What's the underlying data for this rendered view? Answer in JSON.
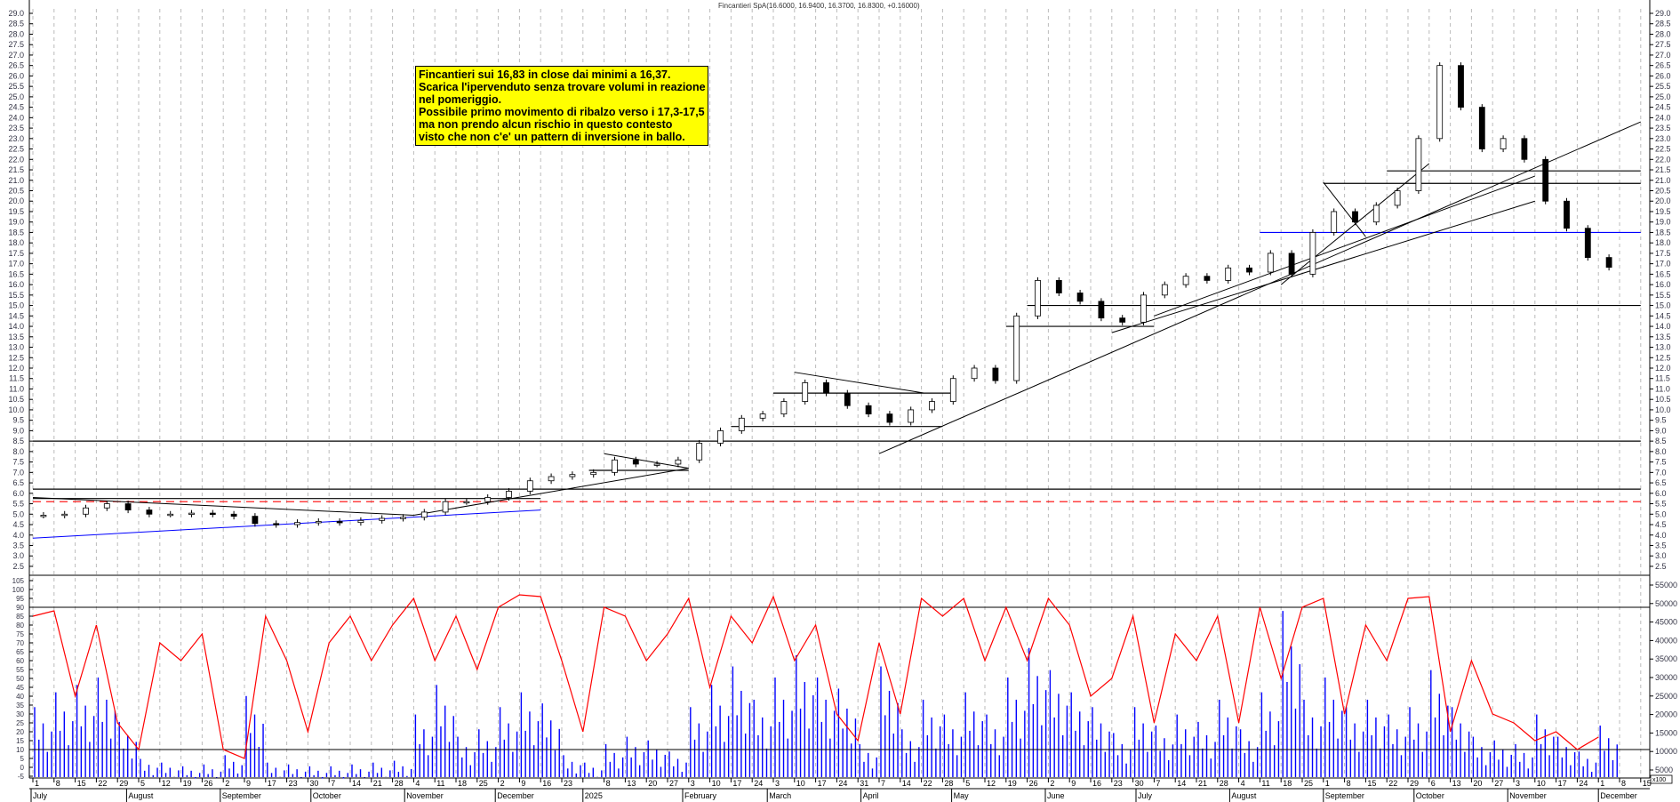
{
  "title": "Fincantieri SpA(16.6000, 16.9400, 16.3700, 16.8300, +0.16000)",
  "note": {
    "lines": [
      "Fincantieri sui 16,83 in close dai minimi a 16,37.",
      "Scarica l'ipervenduto senza trovare volumi in reazione",
      "nel pomeriggio.",
      "Possibile primo movimento di ribalzo verso i 17,3-17,5",
      "ma non prendo alcun rischio in questo contesto",
      "visto che non c'e' un pattern di inversione in ballo."
    ],
    "background": "#ffff00"
  },
  "volume_unit_label": "x100",
  "chart_data": {
    "type": "candlestick",
    "start_date": "2024-07-01",
    "x_ticks": [
      "1",
      "8",
      "15",
      "22",
      "29",
      "5",
      "12",
      "19",
      "26",
      "2",
      "9",
      "17",
      "23",
      "30",
      "7",
      "14",
      "21",
      "28",
      "4",
      "11",
      "18",
      "25",
      "2",
      "9",
      "16",
      "23",
      "",
      "8",
      "13",
      "20",
      "27",
      "3",
      "10",
      "17",
      "24",
      "3",
      "10",
      "17",
      "24",
      "31",
      "7",
      "14",
      "22",
      "28",
      "5",
      "12",
      "19",
      "26",
      "2",
      "9",
      "16",
      "23",
      "30",
      "7",
      "14",
      "21",
      "28",
      "4",
      "11",
      "18",
      "25",
      "1",
      "8",
      "15",
      "22",
      "29",
      "6",
      "13",
      "20",
      "27",
      "3",
      "10",
      "17",
      "24",
      "1",
      "8",
      "15"
    ],
    "months": [
      "July",
      "August",
      "September",
      "October",
      "November",
      "December",
      "2025",
      "February",
      "March",
      "April",
      "May",
      "June",
      "July",
      "August",
      "September",
      "October",
      "November",
      "December"
    ],
    "price_axis": {
      "min": 2.5,
      "max": 29.0,
      "step": 0.5
    },
    "oscillator_axis": {
      "min": -5,
      "max": 105,
      "step": 5
    },
    "volume_axis": {
      "min": 5000,
      "max": 55000,
      "step": 5000
    },
    "last_bar": {
      "open": 16.6,
      "high": 16.94,
      "low": 16.37,
      "close": 16.83,
      "change": 0.16
    },
    "weekly_close": [
      4.95,
      5.0,
      5.3,
      5.5,
      5.2,
      5.0,
      5.0,
      5.05,
      5.0,
      4.9,
      4.55,
      4.5,
      4.6,
      4.65,
      4.6,
      4.7,
      4.8,
      4.85,
      5.1,
      5.6,
      5.6,
      5.8,
      6.1,
      6.6,
      6.8,
      6.9,
      7.0,
      7.6,
      7.4,
      7.4,
      7.6,
      8.4,
      9.0,
      9.6,
      9.8,
      10.4,
      11.3,
      10.8,
      10.2,
      9.8,
      9.4,
      10.0,
      10.4,
      11.5,
      12.0,
      11.4,
      14.5,
      16.2,
      15.6,
      15.2,
      14.4,
      14.2,
      15.5,
      16.0,
      16.4,
      16.2,
      16.8,
      16.6,
      17.5,
      16.5,
      18.5,
      19.5,
      19.0,
      19.8,
      20.5,
      23.0,
      26.5,
      24.5,
      22.5,
      23.0,
      22.0,
      20.0,
      18.7,
      17.3,
      16.83
    ],
    "oscillator": [
      85,
      88,
      40,
      80,
      25,
      10,
      70,
      60,
      75,
      10,
      5,
      85,
      60,
      20,
      70,
      85,
      60,
      80,
      95,
      60,
      85,
      55,
      90,
      97,
      96,
      60,
      20,
      90,
      85,
      60,
      75,
      95,
      45,
      85,
      70,
      96,
      60,
      80,
      30,
      15,
      70,
      30,
      95,
      85,
      95,
      60,
      90,
      60,
      95,
      80,
      40,
      50,
      85,
      25,
      75,
      60,
      85,
      25,
      90,
      50,
      90,
      95,
      30,
      80,
      60,
      95,
      96,
      20,
      60,
      30,
      25,
      15,
      20,
      10,
      17
    ],
    "volume": [
      22000,
      26000,
      28000,
      30000,
      18000,
      8000,
      7000,
      6000,
      6500,
      9000,
      25000,
      7000,
      6500,
      6000,
      6000,
      6500,
      7000,
      7500,
      20000,
      28000,
      14000,
      16000,
      22000,
      26000,
      23000,
      9000,
      7000,
      12000,
      14000,
      13000,
      10000,
      22000,
      28000,
      33000,
      24000,
      30000,
      36000,
      30000,
      27000,
      12000,
      33000,
      16000,
      24000,
      20000,
      26000,
      20000,
      30000,
      38000,
      32000,
      26000,
      22000,
      15000,
      22000,
      17000,
      20000,
      18000,
      24000,
      16000,
      26000,
      48000,
      24000,
      30000,
      22000,
      24000,
      20000,
      22000,
      32000,
      22000,
      14000,
      13000,
      12000,
      20000,
      14000,
      10000,
      17000
    ],
    "price_levels": [
      {
        "price": 8.5,
        "from": "2024-07-01",
        "to": "2025-12-15",
        "color": "#000000"
      },
      {
        "price": 6.2,
        "from": "2024-07-01",
        "to": "2025-12-15",
        "color": "#000000"
      },
      {
        "price": 5.75,
        "from": "2024-07-01",
        "to": "2024-12-16",
        "color": "#000000"
      },
      {
        "price": 5.6,
        "from": "2024-07-01",
        "to": "2025-12-15",
        "color": "#ff0000",
        "dashed": true
      },
      {
        "price": 15.0,
        "from": "2025-05-26",
        "to": "2025-12-15",
        "color": "#000000"
      },
      {
        "price": 18.5,
        "from": "2025-08-11",
        "to": "2025-12-15",
        "color": "#0000ff"
      },
      {
        "price": 20.85,
        "from": "2025-09-01",
        "to": "2025-12-15",
        "color": "#000000"
      },
      {
        "price": 21.45,
        "from": "2025-09-22",
        "to": "2025-12-15",
        "color": "#000000"
      },
      {
        "price": 14.0,
        "from": "2025-05-19",
        "to": "2025-07-07",
        "color": "#000000"
      },
      {
        "price": 10.8,
        "from": "2025-03-03",
        "to": "2025-05-02",
        "color": "#000000"
      },
      {
        "price": 9.2,
        "from": "2025-02-17",
        "to": "2025-04-28",
        "color": "#000000"
      },
      {
        "price": 7.1,
        "from": "2025-01-01",
        "to": "2025-02-03",
        "color": "#000000"
      }
    ],
    "trendlines": [
      {
        "from": [
          "2025-04-07",
          7.9
        ],
        "to": [
          "2025-12-15",
          23.8
        ],
        "color": "#000000"
      },
      {
        "from": [
          "2024-07-01",
          3.85
        ],
        "to": [
          "2024-12-16",
          5.2
        ],
        "color": "#0000ff"
      },
      {
        "from": [
          "2024-07-01",
          5.8
        ],
        "to": [
          "2024-11-04",
          4.95
        ],
        "color": "#000000"
      },
      {
        "from": [
          "2024-11-04",
          4.95
        ],
        "to": [
          "2025-02-03",
          7.2
        ],
        "color": "#000000"
      },
      {
        "from": [
          "2025-08-18",
          16.0
        ],
        "to": [
          "2025-10-06",
          21.8
        ],
        "color": "#000000"
      },
      {
        "from": [
          "2025-06-23",
          13.7
        ],
        "to": [
          "2025-11-10",
          20.0
        ],
        "color": "#000000"
      },
      {
        "from": [
          "2025-07-07",
          14.5
        ],
        "to": [
          "2025-11-10",
          21.2
        ],
        "color": "#000000"
      },
      {
        "from": [
          "2025-03-10",
          11.8
        ],
        "to": [
          "2025-04-22",
          10.8
        ],
        "color": "#000000"
      },
      {
        "from": [
          "2025-09-01",
          20.9
        ],
        "to": [
          "2025-09-15",
          18.3
        ],
        "color": "#000000"
      },
      {
        "from": [
          "2025-01-06",
          7.9
        ],
        "to": [
          "2025-02-03",
          7.2
        ],
        "color": "#000000"
      }
    ],
    "oscillator_levels": [
      90,
      10
    ],
    "colors": {
      "oscillator": "#ff0000",
      "volume": "#0000ff",
      "candles": "#000000",
      "grid": "#bbbbbb"
    }
  }
}
